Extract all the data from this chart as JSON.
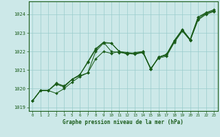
{
  "bg_color": "#cce8e8",
  "grid_color": "#99cccc",
  "line_color": "#1a5c1a",
  "marker_color": "#1a5c1a",
  "xlabel": "Graphe pression niveau de la mer (hPa)",
  "xlim": [
    -0.5,
    23.5
  ],
  "ylim": [
    1018.8,
    1024.7
  ],
  "yticks": [
    1019,
    1020,
    1021,
    1022,
    1023,
    1024
  ],
  "xticks": [
    0,
    1,
    2,
    3,
    4,
    5,
    6,
    7,
    8,
    9,
    10,
    11,
    12,
    13,
    14,
    15,
    16,
    17,
    18,
    19,
    20,
    21,
    22,
    23
  ],
  "series": [
    [
      1019.35,
      1019.9,
      1019.9,
      1020.25,
      1020.1,
      1020.5,
      1020.75,
      1021.45,
      1022.15,
      1022.5,
      1022.0,
      1021.95,
      1021.9,
      1021.85,
      1021.95,
      1021.1,
      1021.65,
      1021.75,
      1022.5,
      1023.1,
      1022.6,
      1023.7,
      1024.0,
      1024.15
    ],
    [
      1019.35,
      1019.9,
      1019.9,
      1019.75,
      1020.0,
      1020.35,
      1020.65,
      1020.85,
      1021.6,
      1022.0,
      1021.9,
      1022.0,
      1021.85,
      1021.95,
      1022.0,
      1021.05,
      1021.7,
      1021.85,
      1022.6,
      1023.2,
      1022.65,
      1023.85,
      1024.05,
      1024.2
    ],
    [
      1019.35,
      1019.9,
      1019.9,
      1020.3,
      1020.15,
      1020.5,
      1020.75,
      1021.4,
      1022.1,
      1022.5,
      1022.45,
      1022.0,
      1021.95,
      1021.9,
      1021.95,
      1021.05,
      1021.7,
      1021.8,
      1022.55,
      1023.15,
      1022.6,
      1023.75,
      1024.05,
      1024.2
    ],
    [
      1019.35,
      1019.9,
      1019.9,
      1020.25,
      1020.1,
      1020.5,
      1020.7,
      1020.85,
      1022.0,
      1022.45,
      1022.45,
      1022.0,
      1021.9,
      1021.9,
      1022.0,
      1021.05,
      1021.7,
      1021.85,
      1022.6,
      1023.15,
      1022.65,
      1023.85,
      1024.1,
      1024.25
    ]
  ]
}
